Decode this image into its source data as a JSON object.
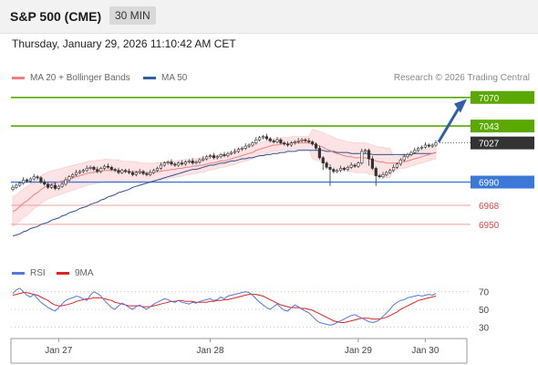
{
  "header": {
    "title": "S&P 500 (CME)",
    "timeframe": "30 MIN"
  },
  "datetime": "Thursday, January 29, 2026 11:10:42 AM CET",
  "legend": {
    "ma20_label": "MA 20 + Bollinger Bands",
    "ma50_label": "MA 50",
    "credit": "Research © 2026 Trading Central"
  },
  "rsi_legend": {
    "rsi_label": "RSI",
    "ma9_label": "9MA"
  },
  "colors": {
    "resistance": "#5aa800",
    "support": "#3c78d8",
    "target_low": "#e44444",
    "last": "#333333",
    "ma20": "#f08080",
    "ma50": "#2f4f8f",
    "band": "#fde0e0",
    "rsi": "#5577dd",
    "rsi_ma": "#dd2222",
    "arrow": "#2f5fa8"
  },
  "chart_data": {
    "type": "candlestick",
    "x_tick_labels": [
      "Jan 27",
      "Jan 28",
      "Jan 29",
      "Jan 30"
    ],
    "levels": [
      {
        "value": 7070,
        "label": "7070",
        "kind": "resistance"
      },
      {
        "value": 7043,
        "label": "7043",
        "kind": "resistance"
      },
      {
        "value": 7027,
        "label": "7027",
        "kind": "last"
      },
      {
        "value": 6990,
        "label": "6990",
        "kind": "support"
      },
      {
        "value": 6968,
        "label": "6968",
        "kind": "target_low"
      },
      {
        "value": 6950,
        "label": "6950",
        "kind": "target_low"
      }
    ],
    "y_range": [
      6918,
      7075
    ],
    "closes": [
      6985,
      6987,
      6989,
      6992,
      6991,
      6993,
      6995,
      6994,
      6990,
      6988,
      6985,
      6987,
      6984,
      6986,
      6988,
      6992,
      6995,
      6997,
      6999,
      7000,
      7001,
      7003,
      7004,
      7002,
      7000,
      7003,
      7005,
      7004,
      7002,
      7001,
      6999,
      7001,
      7000,
      6999,
      6997,
      6999,
      7000,
      6998,
      6997,
      6999,
      7001,
      7003,
      7006,
      7008,
      7009,
      7007,
      7006,
      7008,
      7007,
      7009,
      7010,
      7008,
      7009,
      7011,
      7012,
      7014,
      7015,
      7013,
      7014,
      7016,
      7015,
      7017,
      7018,
      7019,
      7021,
      7022,
      7024,
      7025,
      7027,
      7030,
      7032,
      7033,
      7031,
      7029,
      7028,
      7030,
      7027,
      7026,
      7025,
      7027,
      7028,
      7029,
      7030,
      7029,
      7028,
      7026,
      7022,
      7013,
      7008,
      7004,
      7002,
      7000,
      7001,
      7003,
      7002,
      7004,
      7006,
      7005,
      7008,
      7019,
      7020,
      7012,
      7003,
      6996,
      6995,
      6997,
      6999,
      7001,
      7004,
      7007,
      7011,
      7014,
      7016,
      7018,
      7020,
      7022,
      7023,
      7025,
      7024,
      7025,
      7027
    ],
    "ma20": [
      6962,
      6964,
      6967,
      6970,
      6972,
      6975,
      6978,
      6980,
      6983,
      6985,
      6987,
      6988,
      6989,
      6990,
      6991,
      6992,
      6993,
      6994,
      6995,
      6996,
      6997,
      6998,
      6999,
      6999,
      7000,
      7000,
      7001,
      7001,
      7001,
      7001,
      7001,
      7000,
      7000,
      7000,
      7000,
      7000,
      6999,
      6999,
      6999,
      6999,
      6999,
      7000,
      7000,
      7001,
      7001,
      7002,
      7002,
      7003,
      7003,
      7004,
      7004,
      7005,
      7005,
      7006,
      7006,
      7007,
      7008,
      7008,
      7009,
      7010,
      7010,
      7011,
      7012,
      7013,
      7014,
      7015,
      7016,
      7017,
      7018,
      7020,
      7021,
      7022,
      7023,
      7024,
      7025,
      7025,
      7026,
      7026,
      7026,
      7027,
      7027,
      7027,
      7027,
      7027,
      7027,
      7026,
      7025,
      7024,
      7023,
      7021,
      7020,
      7018,
      7017,
      7016,
      7015,
      7014,
      7014,
      7013,
      7013,
      7013,
      7013,
      7012,
      7011,
      7010,
      7009,
      7009,
      7008,
      7008,
      7008,
      7008,
      7009,
      7009,
      7010,
      7011,
      7012,
      7013,
      7014,
      7015,
      7016,
      7017,
      7018
    ],
    "ma50": [
      6939,
      6940,
      6941,
      6943,
      6944,
      6946,
      6947,
      6948,
      6950,
      6951,
      6952,
      6954,
      6955,
      6956,
      6958,
      6959,
      6961,
      6962,
      6963,
      6965,
      6966,
      6967,
      6969,
      6970,
      6971,
      6973,
      6974,
      6976,
      6977,
      6978,
      6980,
      6981,
      6982,
      6983,
      6985,
      6986,
      6987,
      6988,
      6989,
      6990,
      6991,
      6992,
      6993,
      6994,
      6995,
      6996,
      6997,
      6998,
      6999,
      7000,
      7001,
      7002,
      7002,
      7003,
      7004,
      7005,
      7006,
      7006,
      7007,
      7008,
      7008,
      7009,
      7010,
      7010,
      7011,
      7012,
      7012,
      7013,
      7013,
      7014,
      7015,
      7015,
      7016,
      7016,
      7017,
      7017,
      7018,
      7018,
      7019,
      7019,
      7019,
      7020,
      7020,
      7020,
      7020,
      7020,
      7020,
      7020,
      7020,
      7019,
      7019,
      7019,
      7018,
      7018,
      7018,
      7018,
      7017,
      7017,
      7017,
      7017,
      7017,
      7017,
      7016,
      7016,
      7016,
      7016,
      7016,
      7016,
      7016,
      7016,
      7016,
      7016,
      7016,
      7016,
      7017,
      7017,
      7017,
      7017,
      7017,
      7017,
      7018
    ],
    "rsi_axis": {
      "ticks": [
        70,
        50,
        30
      ],
      "range": [
        20,
        80
      ]
    },
    "rsi": [
      68,
      72,
      74,
      70,
      66,
      64,
      67,
      62,
      58,
      55,
      52,
      50,
      48,
      52,
      56,
      60,
      62,
      63,
      65,
      64,
      62,
      60,
      66,
      70,
      68,
      65,
      60,
      56,
      52,
      50,
      54,
      57,
      55,
      52,
      50,
      53,
      55,
      52,
      50,
      53,
      56,
      58,
      60,
      62,
      61,
      59,
      58,
      60,
      58,
      57,
      56,
      58,
      57,
      59,
      60,
      61,
      62,
      60,
      61,
      64,
      62,
      65,
      66,
      67,
      68,
      69,
      70,
      69,
      66,
      62,
      58,
      55,
      52,
      50,
      53,
      56,
      52,
      49,
      48,
      52,
      55,
      53,
      50,
      48,
      46,
      42,
      38,
      35,
      34,
      33,
      32,
      33,
      35,
      37,
      39,
      41,
      43,
      44,
      42,
      40,
      38,
      36,
      35,
      36,
      38,
      42,
      46,
      50,
      55,
      58,
      60,
      61,
      63,
      64,
      65,
      66,
      65,
      66,
      67,
      66,
      68
    ],
    "rsi_ma": [
      66,
      67,
      68,
      69,
      69,
      68,
      67,
      66,
      64,
      62,
      60,
      57,
      55,
      54,
      54,
      55,
      56,
      57,
      59,
      60,
      61,
      62,
      62,
      63,
      63,
      63,
      62,
      61,
      60,
      58,
      57,
      56,
      55,
      54,
      54,
      54,
      54,
      53,
      53,
      53,
      54,
      55,
      56,
      57,
      58,
      59,
      59,
      60,
      60,
      59,
      59,
      59,
      58,
      58,
      58,
      58,
      59,
      59,
      60,
      60,
      61,
      61,
      62,
      63,
      64,
      65,
      66,
      67,
      67,
      67,
      66,
      65,
      63,
      61,
      59,
      57,
      55,
      54,
      53,
      52,
      52,
      52,
      51,
      51,
      50,
      49,
      47,
      45,
      43,
      41,
      39,
      37,
      36,
      35,
      35,
      36,
      37,
      38,
      39,
      40,
      40,
      40,
      39,
      39,
      39,
      40,
      41,
      43,
      45,
      47,
      50,
      52,
      54,
      56,
      58,
      60,
      61,
      62,
      63,
      64,
      65
    ]
  }
}
